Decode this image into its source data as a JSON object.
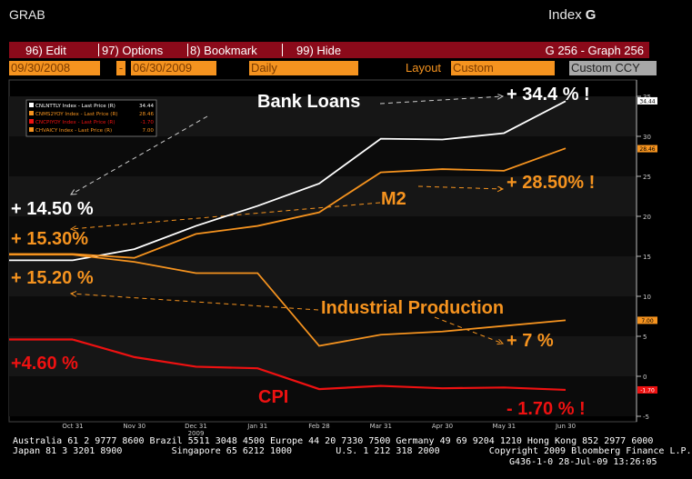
{
  "header": {
    "title": "GRAB",
    "index_text": "Index",
    "index_key": "G"
  },
  "menu": {
    "items": [
      "96) Edit",
      "97) Options",
      "8) Bookmark",
      "99) Hide"
    ],
    "graph_id": "G 256 - Graph 256"
  },
  "params": {
    "start_date": "09/30/2008",
    "sep": "-",
    "end_date": "06/30/2009",
    "period": "Daily",
    "layout_label": "Layout",
    "layout_value": "Custom",
    "currency": "Custom CCY"
  },
  "chart_data": {
    "type": "line",
    "x": [
      "Oct 31",
      "Nov 30",
      "Dec 31",
      "Jan 31",
      "Feb 28",
      "Mar 31",
      "Apr 30",
      "May 31",
      "Jun 30"
    ],
    "x_sub_label": "2009",
    "ylim": [
      -5,
      35
    ],
    "y_ticks": [
      -5,
      0,
      5,
      10,
      15,
      20,
      25,
      30,
      35
    ],
    "grid": false,
    "series": [
      {
        "name": "CNLNTTLY Index - Last Price (R)",
        "last": "34.44",
        "color": "#ffffff",
        "values": [
          14.5,
          15.9,
          18.8,
          21.3,
          24.1,
          29.7,
          29.6,
          30.4,
          34.4
        ]
      },
      {
        "name": "CNMS2YOY Index - Last Price (R)",
        "last": "28.46",
        "color": "#f5931f",
        "values": [
          15.3,
          14.8,
          17.8,
          18.8,
          20.5,
          25.5,
          25.9,
          25.7,
          28.5
        ]
      },
      {
        "name": "CNCPIYOY Index - Last Price (R)",
        "last": "-1.70",
        "color": "#ee1111",
        "values": [
          4.6,
          2.4,
          1.2,
          1.0,
          -1.6,
          -1.2,
          -1.5,
          -1.4,
          -1.7
        ]
      },
      {
        "name": "CHVAICY Index - Last Price (R)",
        "last": "7.00",
        "color": "#f5931f",
        "values": [
          15.2,
          14.3,
          12.9,
          12.9,
          3.8,
          5.2,
          5.6,
          6.3,
          7.0
        ]
      }
    ],
    "annotations": {
      "bank_loans": "Bank Loans",
      "bank_loans_end": "+ 34.4 % !",
      "bank_loans_start": "+ 14.50 %",
      "m2": "M2",
      "m2_end": "+ 28.50% !",
      "m2_start": "+ 15.30%",
      "ip_start": "+ 15.20 %",
      "ip": "Industrial Production",
      "ip_end": "+ 7 %",
      "cpi_start": "+4.60 %",
      "cpi": "CPI",
      "cpi_end": "- 1.70 % !"
    }
  },
  "footer": {
    "line1": "Australia 61 2 9777 8600 Brazil 5511 3048 4500 Europe 44 20 7330 7500 Germany 49 69 9204 1210 Hong Kong 852 2977 6000",
    "line2": "Japan 81 3 3201 8900         Singapore 65 6212 1000        U.S. 1 212 318 2000         Copyright 2009 Bloomberg Finance L.P.",
    "stamp": "G436-1-0 28-Jul-09 13:26:05"
  },
  "colors": {
    "menu_bg": "#8b0a1a",
    "orange": "#f5931f",
    "red": "#ee1111"
  }
}
